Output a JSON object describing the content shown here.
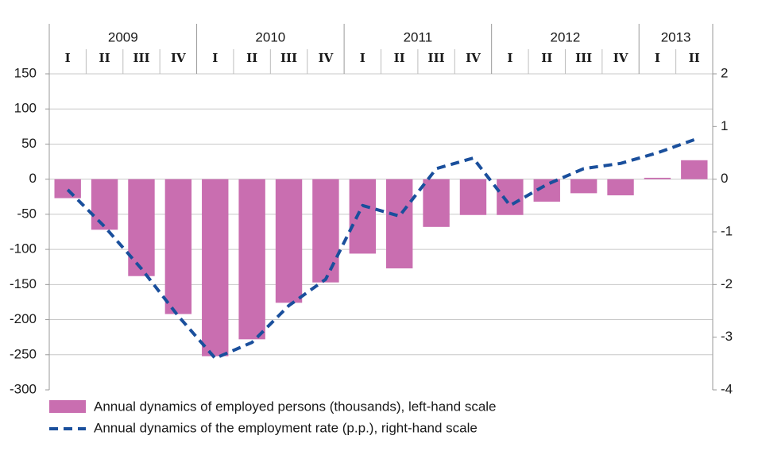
{
  "chart_data": {
    "type": "bar+line",
    "years": [
      {
        "label": "2009",
        "quarters": 4
      },
      {
        "label": "2010",
        "quarters": 4
      },
      {
        "label": "2011",
        "quarters": 4
      },
      {
        "label": "2012",
        "quarters": 4
      },
      {
        "label": "2013",
        "quarters": 2
      }
    ],
    "categories": [
      "I",
      "II",
      "III",
      "IV",
      "I",
      "II",
      "III",
      "IV",
      "I",
      "II",
      "III",
      "IV",
      "I",
      "II",
      "III",
      "IV",
      "I",
      "II"
    ],
    "left_axis": {
      "min": -300,
      "max": 150,
      "ticks": [
        150,
        100,
        50,
        0,
        -50,
        -100,
        -150,
        -200,
        -250,
        -300
      ]
    },
    "right_axis": {
      "min": -4,
      "max": 2,
      "ticks": [
        2,
        1,
        0,
        -1,
        -2,
        -3,
        -4
      ]
    },
    "series": [
      {
        "name": "Annual dynamics of employed persons (thousands), left-hand scale",
        "type": "bar",
        "axis": "left",
        "color": "#c96eb0",
        "values": [
          -27,
          -72,
          -138,
          -192,
          -252,
          -228,
          -176,
          -147,
          -106,
          -127,
          -68,
          -51,
          -51,
          -32,
          -20,
          -23,
          2,
          27
        ]
      },
      {
        "name": "Annual dynamics of the employment rate (p.p.), right-hand scale",
        "type": "line",
        "axis": "right",
        "color": "#1a4f9c",
        "style": "dashed",
        "values": [
          -0.2,
          -0.9,
          -1.7,
          -2.6,
          -3.4,
          -3.1,
          -2.4,
          -1.9,
          -0.5,
          -0.7,
          0.2,
          0.4,
          -0.5,
          -0.1,
          0.2,
          0.3,
          0.5,
          0.75
        ]
      }
    ],
    "grid": {
      "horizontal": true,
      "color": "#c8c8c8"
    },
    "legend_position": "bottom-left"
  }
}
